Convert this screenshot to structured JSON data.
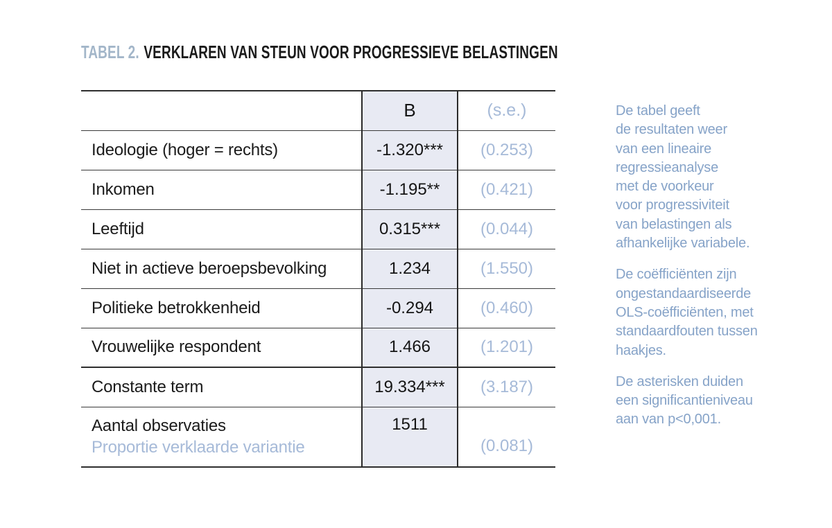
{
  "title": {
    "prefix": "TABEL 2.",
    "text": "VERKLAREN VAN STEUN VOOR PROGRESSIEVE BELASTINGEN"
  },
  "table": {
    "header": {
      "b_label": "B",
      "se_label": "(s.e.)"
    },
    "rows": [
      {
        "label": "Ideologie (hoger = rechts)",
        "b": "-1.320***",
        "se": "(0.253)"
      },
      {
        "label": "Inkomen",
        "b": "-1.195**",
        "se": "(0.421)"
      },
      {
        "label": "Leeftijd",
        "b": "0.315***",
        "se": "(0.044)"
      },
      {
        "label": "Niet in actieve beroepsbevolking",
        "b": "1.234",
        "se": "(1.550)"
      },
      {
        "label": "Politieke betrokkenheid",
        "b": "-0.294",
        "se": "(0.460)"
      },
      {
        "label": "Vrouwelijke respondent",
        "b": "1.466",
        "se": "(1.201)"
      },
      {
        "label": "Constante term",
        "b": "19.334***",
        "se": "(3.187)"
      }
    ],
    "footer": {
      "label_top": "Aantal observaties",
      "label_bottom": "Proportie verklaarde variantie",
      "b": "1511",
      "se": "(0.081)"
    }
  },
  "notes": {
    "paragraphs": [
      "De tabel geeft\nde resultaten weer\nvan een lineaire\nregressieanalyse\nmet de voorkeur\nvoor progressiviteit\nvan belastingen als\nafhankelijke variabele.",
      "De coëfficiënten zijn\nongestandaardiseerde\nOLS-coëfficiënten, met\nstandaardfouten tussen\nhaakjes.",
      "De asterisken duiden\neen significantieniveau\naan van p<0,001."
    ]
  },
  "colors": {
    "b_column_bg": "#e8eaf3",
    "se_text_blue": "#a6bad8",
    "note_text_blue": "#86a3c8",
    "title_prefix_blue": "#a3b6c9",
    "text_black": "#1b1b1b",
    "line_dark": "#2e2e2e"
  }
}
